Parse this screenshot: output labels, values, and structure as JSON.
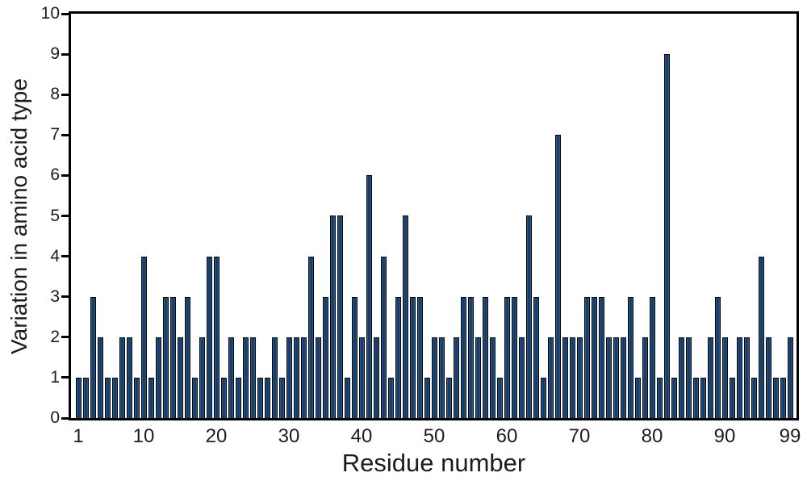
{
  "chart_data": {
    "type": "bar",
    "title": "",
    "xlabel": "Residue number",
    "ylabel": "Variation in amino acid type",
    "x_label_name": "Residue number",
    "x_range": [
      1,
      99
    ],
    "ylim": [
      0,
      10
    ],
    "yticks": [
      0,
      1,
      2,
      3,
      4,
      5,
      6,
      7,
      8,
      9,
      10
    ],
    "xtick_labels": [
      "1",
      "10",
      "20",
      "30",
      "40",
      "50",
      "60",
      "70",
      "80",
      "90",
      "99"
    ],
    "xtick_residues": [
      1,
      10,
      20,
      30,
      40,
      50,
      60,
      70,
      80,
      90,
      99
    ],
    "grid": false,
    "legend": null,
    "categories": [
      1,
      2,
      3,
      4,
      5,
      6,
      7,
      8,
      9,
      10,
      11,
      12,
      13,
      14,
      15,
      16,
      17,
      18,
      19,
      20,
      21,
      22,
      23,
      24,
      25,
      26,
      27,
      28,
      29,
      30,
      31,
      32,
      33,
      34,
      35,
      36,
      37,
      38,
      39,
      40,
      41,
      42,
      43,
      44,
      45,
      46,
      47,
      48,
      49,
      50,
      51,
      52,
      53,
      54,
      55,
      56,
      57,
      58,
      59,
      60,
      61,
      62,
      63,
      64,
      65,
      66,
      67,
      68,
      69,
      70,
      71,
      72,
      73,
      74,
      75,
      76,
      77,
      78,
      79,
      80,
      81,
      82,
      83,
      84,
      85,
      86,
      87,
      88,
      89,
      90,
      91,
      92,
      93,
      94,
      95,
      96,
      97,
      98,
      99
    ],
    "values": [
      1,
      1,
      3,
      2,
      1,
      1,
      2,
      2,
      1,
      4,
      1,
      2,
      3,
      3,
      2,
      3,
      1,
      2,
      4,
      4,
      1,
      2,
      1,
      2,
      2,
      1,
      1,
      2,
      1,
      2,
      2,
      2,
      4,
      2,
      3,
      5,
      5,
      1,
      3,
      2,
      6,
      2,
      4,
      1,
      3,
      5,
      3,
      3,
      1,
      2,
      2,
      1,
      2,
      3,
      3,
      2,
      3,
      2,
      1,
      3,
      3,
      2,
      5,
      3,
      1,
      2,
      7,
      2,
      2,
      2,
      3,
      3,
      3,
      2,
      2,
      2,
      3,
      1,
      2,
      3,
      1,
      9,
      1,
      2,
      2,
      1,
      1,
      2,
      3,
      2,
      1,
      2,
      2,
      1,
      4,
      2,
      1,
      1,
      2
    ]
  },
  "colors": {
    "background": "#ffffff",
    "bar_fill": "#16395f",
    "bar_highlight": "#2e6097",
    "bar_edge": "#060606",
    "axis": "#000000",
    "text": "#1c1c1c"
  }
}
